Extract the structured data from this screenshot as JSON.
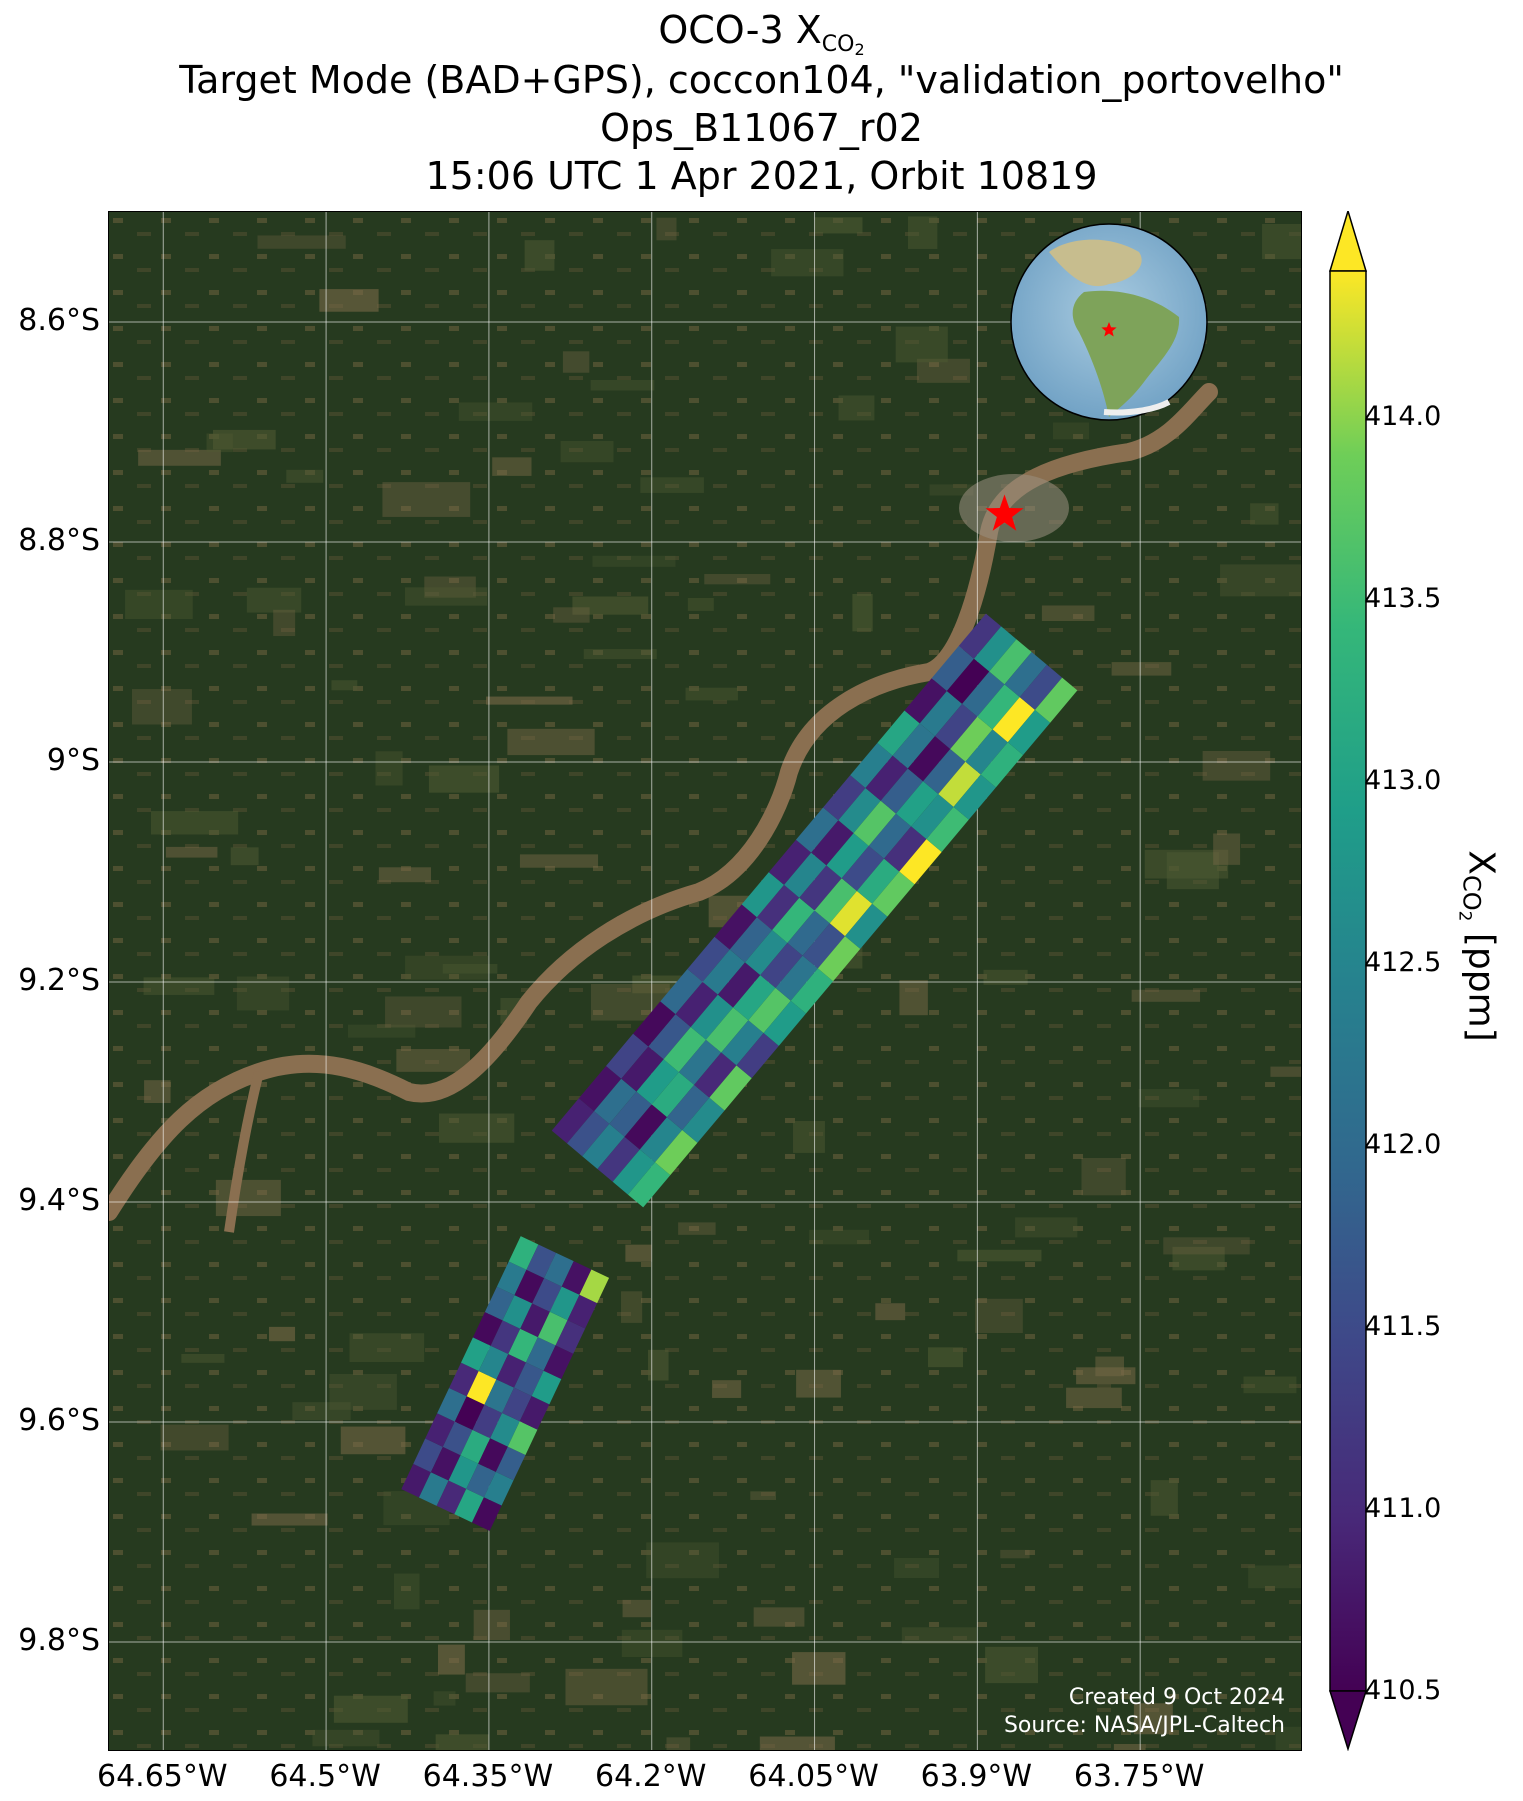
{
  "title": {
    "line1_main": "OCO-3 X",
    "line1_sub": "CO",
    "line1_subsub": "2",
    "line2": "Target Mode (BAD+GPS), coccon104, \"validation_portovelho\"",
    "line3": "Ops_B11067_r02",
    "line4": "15:06 UTC 1 Apr 2021, Orbit 10819"
  },
  "map": {
    "lat_ticks": [
      "8.6°S",
      "8.8°S",
      "9°S",
      "9.2°S",
      "9.4°S",
      "9.6°S",
      "9.8°S"
    ],
    "lat_values": [
      -8.6,
      -8.8,
      -9.0,
      -9.2,
      -9.4,
      -9.6,
      -9.8
    ],
    "lon_ticks": [
      "64.65°W",
      "64.5°W",
      "64.35°W",
      "64.2°W",
      "64.05°W",
      "63.9°W",
      "63.75°W"
    ],
    "lon_values": [
      -64.65,
      -64.5,
      -64.35,
      -64.2,
      -64.05,
      -63.9,
      -63.75
    ],
    "extent": {
      "lon_min": -64.7,
      "lon_max": -63.6,
      "lat_min": -9.9,
      "lat_max": -8.5
    },
    "target_marker": {
      "lon": -63.875,
      "lat": -8.775,
      "color": "#ff0000",
      "icon": "star-icon"
    },
    "credit_line1": "Created 9 Oct 2024",
    "credit_line2": "Source: NASA/JPL-Caltech",
    "colors": {
      "forest": "#263a1f",
      "river": "#8a6f50",
      "grid": "#ffffff"
    },
    "inset": {
      "icon": "globe-icon",
      "marker_color": "#ff0000"
    }
  },
  "colorbar": {
    "title_main": "X",
    "title_sub": "CO",
    "title_subsub": "2",
    "title_unit": " [ppm]",
    "ticks": [
      "410.5",
      "411.0",
      "411.5",
      "412.0",
      "412.5",
      "413.0",
      "413.5",
      "414.0"
    ],
    "tick_values": [
      410.5,
      411.0,
      411.5,
      412.0,
      412.5,
      413.0,
      413.5,
      414.0
    ],
    "vmin": 410.5,
    "vmax": 414.4,
    "extend": "both",
    "colormap": "viridis"
  },
  "chart_data": {
    "type": "heatmap",
    "variable": "XCO2 [ppm]",
    "swaths": [
      {
        "lon_start": -64.25,
        "lat_start": -9.37,
        "lon_end": -63.85,
        "lat_end": -8.9,
        "width_deg": 0.11,
        "rows": 16,
        "cols": 6,
        "values": [
          410.9,
          411.6,
          412.4,
          411.2,
          412.8,
          413.4,
          410.7,
          412.1,
          411.8,
          410.6,
          412.5,
          413.9,
          411.4,
          410.8,
          412.9,
          413.2,
          411.9,
          412.6,
          410.6,
          411.7,
          413.5,
          412.2,
          411.0,
          413.8,
          412.0,
          410.9,
          412.7,
          413.6,
          412.4,
          411.3,
          411.5,
          412.3,
          410.8,
          413.1,
          413.7,
          412.9,
          410.7,
          411.9,
          412.6,
          411.4,
          412.2,
          413.3,
          412.8,
          411.1,
          413.4,
          412.0,
          411.6,
          413.9,
          410.9,
          412.5,
          411.2,
          413.6,
          414.3,
          412.7,
          412.1,
          410.8,
          412.9,
          411.5,
          413.2,
          413.8,
          411.3,
          412.6,
          413.7,
          412.0,
          411.1,
          414.4,
          412.4,
          410.9,
          411.8,
          413.0,
          412.7,
          413.5,
          413.1,
          412.2,
          410.6,
          411.9,
          414.2,
          412.8,
          410.7,
          412.3,
          411.4,
          413.9,
          412.5,
          413.3,
          411.8,
          410.5,
          412.0,
          413.4,
          414.4,
          412.9,
          411.2,
          412.7,
          413.6,
          412.1,
          411.5,
          413.8
        ]
      },
      {
        "lon_start": -64.39,
        "lat_start": -9.68,
        "lon_end": -64.28,
        "lat_end": -9.45,
        "width_deg": 0.09,
        "rows": 10,
        "cols": 5,
        "values": [
          410.8,
          412.3,
          411.0,
          413.1,
          410.6,
          411.5,
          410.7,
          412.8,
          411.9,
          412.4,
          410.9,
          411.6,
          413.2,
          410.6,
          411.8,
          412.1,
          410.5,
          411.3,
          412.6,
          413.7,
          411.0,
          414.4,
          412.2,
          411.4,
          410.8,
          413.0,
          412.5,
          410.9,
          411.7,
          412.9,
          410.6,
          411.2,
          413.4,
          412.0,
          410.7,
          411.9,
          412.7,
          410.8,
          413.6,
          411.1,
          412.3,
          410.6,
          411.5,
          412.8,
          410.9,
          413.3,
          411.6,
          412.1,
          410.7,
          414.1
        ]
      }
    ]
  }
}
